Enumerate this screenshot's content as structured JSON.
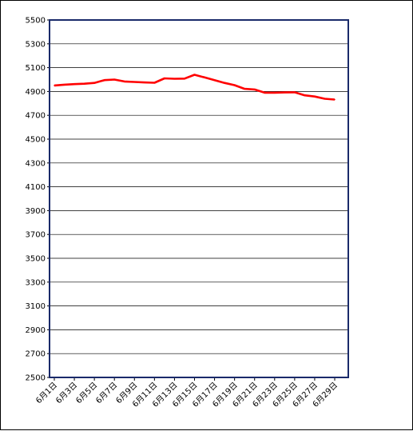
{
  "chart_data": {
    "type": "line",
    "title": "",
    "xlabel": "",
    "ylabel": "",
    "ylim": [
      2500,
      5500
    ],
    "yticks": [
      2500,
      2700,
      2900,
      3100,
      3300,
      3500,
      3700,
      3900,
      4100,
      4300,
      4500,
      4700,
      4900,
      5100,
      5300,
      5500
    ],
    "ytick_labels": [
      "2500",
      "2700",
      "2900",
      "3100",
      "3300",
      "3500",
      "3700",
      "3900",
      "4100",
      "4300",
      "4500",
      "4700",
      "4900",
      "5100",
      "5300",
      "5500"
    ],
    "x_labels": [
      "6月1日",
      "6月3日",
      "6月5日",
      "6月7日",
      "6月9日",
      "6月11日",
      "6月13日",
      "6月15日",
      "6月17日",
      "6月19日",
      "6月21日",
      "6月23日",
      "6月25日",
      "6月27日",
      "6月29日"
    ],
    "grid": true,
    "line_color": "#ff0000",
    "series": [
      {
        "x": [
          "6月1日",
          "6月2日",
          "6月3日",
          "6月4日",
          "6月5日",
          "6月6日",
          "6月7日",
          "6月8日",
          "6月9日",
          "6月10日",
          "6月11日",
          "6月12日",
          "6月13日",
          "6月14日",
          "6月15日",
          "6月16日",
          "6月17日",
          "6月18日",
          "6月19日",
          "6月20日",
          "6月21日",
          "6月22日",
          "6月23日",
          "6月24日",
          "6月25日",
          "6月26日",
          "6月27日",
          "6月28日",
          "6月29日"
        ],
        "values": [
          4950,
          4957,
          4962,
          4965,
          4972,
          4995,
          5000,
          4984,
          4980,
          4976,
          4973,
          5010,
          5007,
          5008,
          5040,
          5018,
          4995,
          4972,
          4953,
          4922,
          4917,
          4890,
          4890,
          4892,
          4893,
          4868,
          4858,
          4839,
          4832
        ]
      }
    ]
  }
}
